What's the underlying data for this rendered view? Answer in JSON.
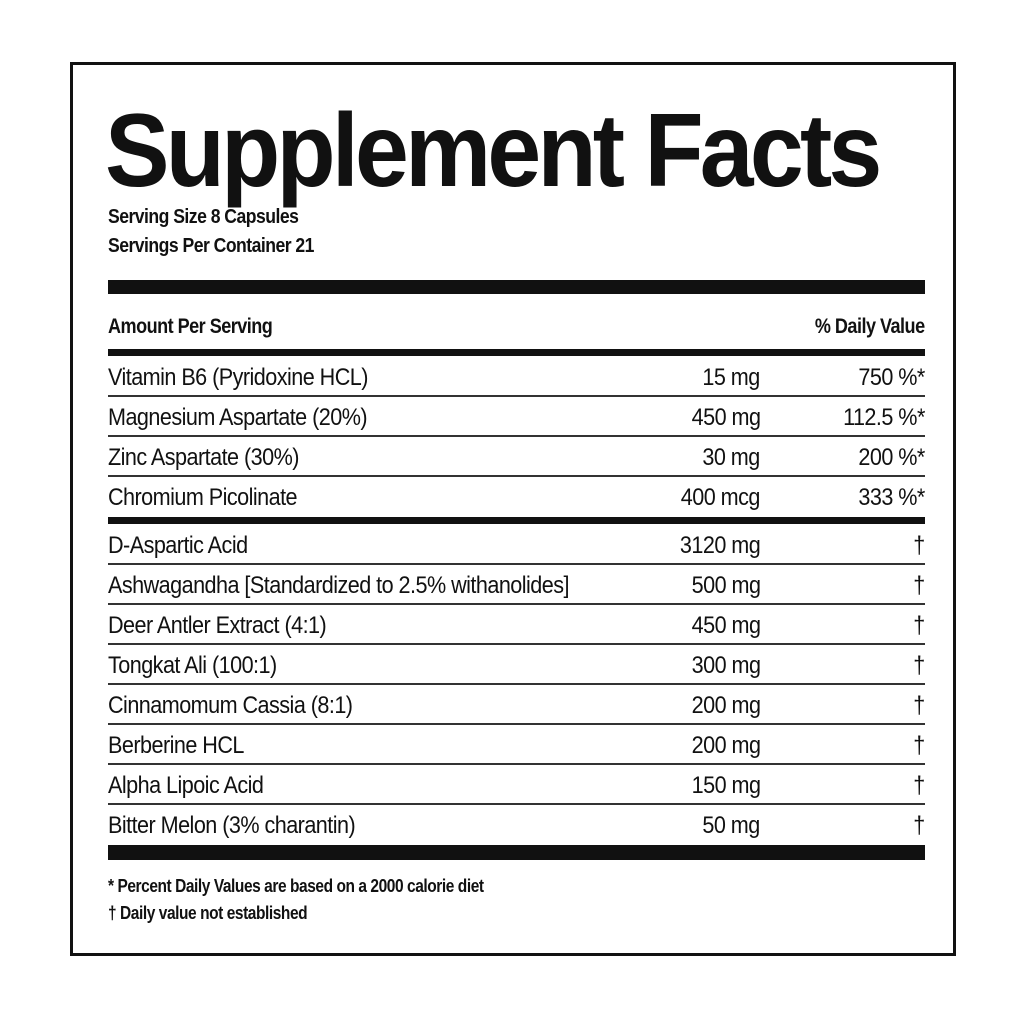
{
  "title": "Supplement Facts",
  "serving_size": "Serving Size  8 Capsules",
  "servings_per_container": "Servings Per Container  21",
  "header": {
    "amount": "Amount Per Serving",
    "daily_value": "% Daily Value"
  },
  "group1": [
    {
      "name": "Vitamin B6 (Pyridoxine HCL)",
      "amount": "15 mg",
      "dv": "750 %*"
    },
    {
      "name": "Magnesium Aspartate (20%)",
      "amount": "450 mg",
      "dv": "112.5 %*"
    },
    {
      "name": "Zinc Aspartate (30%)",
      "amount": "30 mg",
      "dv": "200 %*"
    },
    {
      "name": "Chromium Picolinate",
      "amount": "400 mcg",
      "dv": "333 %*"
    }
  ],
  "group2": [
    {
      "name": "D-Aspartic Acid",
      "amount": "3120 mg",
      "dv": "†"
    },
    {
      "name": "Ashwagandha [Standardized to 2.5% withanolides]",
      "amount": "500 mg",
      "dv": "†"
    },
    {
      "name": "Deer Antler Extract (4:1)",
      "amount": "450 mg",
      "dv": "†"
    },
    {
      "name": "Tongkat Ali (100:1)",
      "amount": "300 mg",
      "dv": "†"
    },
    {
      "name": "Cinnamomum Cassia (8:1)",
      "amount": "200 mg",
      "dv": "†"
    },
    {
      "name": "Berberine HCL",
      "amount": "200 mg",
      "dv": "†"
    },
    {
      "name": "Alpha Lipoic Acid",
      "amount": "150 mg",
      "dv": "†"
    },
    {
      "name": "Bitter Melon (3% charantin)",
      "amount": "50 mg",
      "dv": "†"
    }
  ],
  "footnotes": [
    "* Percent Daily Values are based on a 2000 calorie diet",
    "† Daily value not established"
  ]
}
